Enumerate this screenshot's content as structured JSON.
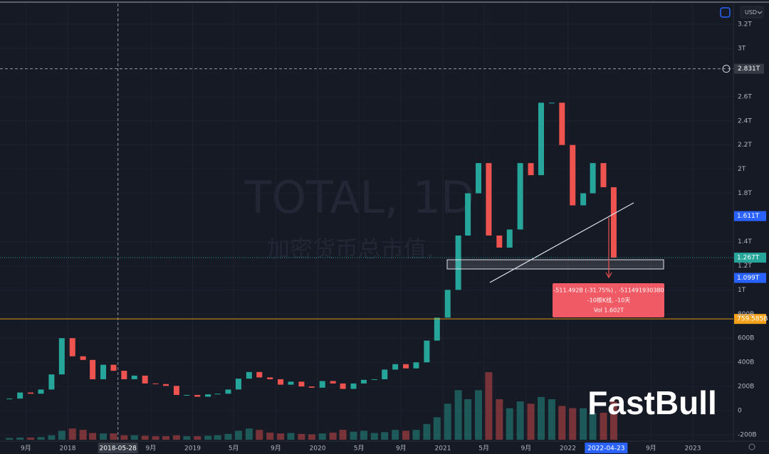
{
  "chart_data": {
    "type": "candlestick",
    "watermark_title": "TOTAL, 1D",
    "watermark_subtitle": "加密货币总市值,",
    "brand": "FastBull",
    "currency": "USD",
    "x": [
      "2017-07",
      "2017-08",
      "2017-09",
      "2017-10",
      "2017-11",
      "2017-12",
      "2018-01",
      "2018-02",
      "2018-03",
      "2018-04",
      "2018-05",
      "2018-06",
      "2018-07",
      "2018-08",
      "2018-09",
      "2018-10",
      "2018-11",
      "2018-12",
      "2019-01",
      "2019-02",
      "2019-03",
      "2019-04",
      "2019-05",
      "2019-06",
      "2019-07",
      "2019-08",
      "2019-09",
      "2019-10",
      "2019-11",
      "2019-12",
      "2020-01",
      "2020-02",
      "2020-03",
      "2020-04",
      "2020-05",
      "2020-06",
      "2020-07",
      "2020-08",
      "2020-09",
      "2020-10",
      "2020-11",
      "2020-12",
      "2021-01",
      "2021-02",
      "2021-03",
      "2021-04",
      "2021-05",
      "2021-06",
      "2021-07",
      "2021-08",
      "2021-09",
      "2021-10",
      "2021-11",
      "2021-12",
      "2022-01",
      "2022-02",
      "2022-03",
      "2022-04",
      "2022-05"
    ],
    "values": [
      100,
      150,
      140,
      175,
      300,
      600,
      450,
      420,
      260,
      380,
      330,
      260,
      290,
      225,
      220,
      205,
      130,
      130,
      115,
      135,
      140,
      175,
      265,
      320,
      275,
      260,
      215,
      240,
      200,
      190,
      245,
      225,
      180,
      225,
      255,
      260,
      340,
      385,
      350,
      400,
      580,
      770,
      1000,
      1450,
      1800,
      2050,
      1450,
      1350,
      1500,
      2050,
      1950,
      2550,
      2550,
      2200,
      1700,
      1800,
      2050,
      1850,
      1267
    ],
    "volume": [
      4,
      5,
      5,
      6,
      10,
      20,
      25,
      22,
      15,
      14,
      14,
      10,
      10,
      9,
      8,
      8,
      10,
      8,
      8,
      9,
      10,
      13,
      20,
      25,
      22,
      16,
      14,
      15,
      13,
      12,
      14,
      16,
      22,
      18,
      20,
      15,
      17,
      22,
      20,
      22,
      35,
      50,
      80,
      110,
      90,
      110,
      150,
      90,
      70,
      85,
      80,
      95,
      90,
      75,
      70,
      70,
      60,
      60,
      85
    ],
    "colors": {
      "up": "#26a69a",
      "down": "#ef5350"
    },
    "ylim": [
      -253,
      3371
    ],
    "yticks": [
      {
        "value": 3200,
        "label": "3.2T"
      },
      {
        "value": 3000,
        "label": "3T"
      },
      {
        "value": 2600,
        "label": "2.6T"
      },
      {
        "value": 2400,
        "label": "2.4T"
      },
      {
        "value": 2200,
        "label": "2.2T"
      },
      {
        "value": 2000,
        "label": "2T"
      },
      {
        "value": 1800,
        "label": "1.8T"
      },
      {
        "value": 1400,
        "label": "1.4T"
      },
      {
        "value": 1200,
        "label": "1.2T"
      },
      {
        "value": 1000,
        "label": "1T"
      },
      {
        "value": 800,
        "label": "800B"
      },
      {
        "value": 600,
        "label": "600B"
      },
      {
        "value": 400,
        "label": "400B"
      },
      {
        "value": 200,
        "label": "200B"
      },
      0,
      {
        "value": -200,
        "label": "-200B"
      }
    ],
    "xticks": [
      {
        "value": "2017-09",
        "label": "9月"
      },
      {
        "value": "2018-01",
        "label": "2018"
      },
      {
        "value": "2018-09",
        "label": "9月"
      },
      {
        "value": "2019-01",
        "label": "2019"
      },
      {
        "value": "2019-05",
        "label": "5月"
      },
      {
        "value": "2019-09",
        "label": "9月"
      },
      {
        "value": "2020-01",
        "label": "2020"
      },
      {
        "value": "2020-05",
        "label": "5月"
      },
      {
        "value": "2020-09",
        "label": "9月"
      },
      {
        "value": "2021-01",
        "label": "2021"
      },
      {
        "value": "2021-05",
        "label": "5月"
      },
      {
        "value": "2021-09",
        "label": "9月"
      },
      {
        "value": "2022-01",
        "label": "2022"
      },
      {
        "value": "2022-09",
        "label": "9月"
      },
      {
        "value": "2023-01",
        "label": "2023"
      }
    ],
    "crosshair": {
      "date": "2018-05-28",
      "price": {
        "value": 2831,
        "label": "2.831T"
      }
    },
    "cursor_date": "2022-04-23",
    "price_labels": [
      {
        "value": 1611,
        "label": "1.611T",
        "color": "#2962ff"
      },
      {
        "value": 1267,
        "label": "1.267T",
        "color": "#26a69a"
      },
      {
        "value": 1099,
        "label": "1.099T",
        "color": "#2962ff"
      },
      {
        "value": 759.585,
        "label": "759.585B",
        "color": "#f7a21b"
      }
    ],
    "measure": {
      "line1": "-511.492B (-31.75%) , -511491930380",
      "line2": "-10根K线, -10天",
      "line3": "Vol 1.602T"
    }
  }
}
